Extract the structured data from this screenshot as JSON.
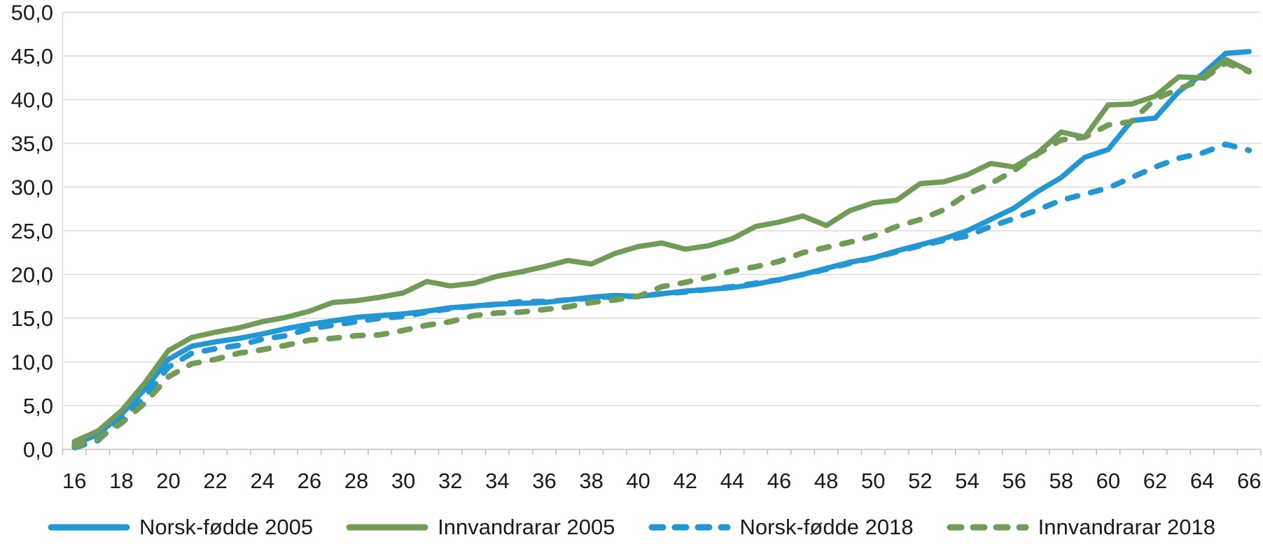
{
  "chart_data": {
    "type": "line",
    "title": "",
    "xlabel": "",
    "ylabel": "",
    "ylim": [
      0,
      50
    ],
    "grid": true,
    "legend_position": "bottom",
    "x_label_every": 2,
    "x": [
      16,
      17,
      18,
      19,
      20,
      21,
      22,
      23,
      24,
      25,
      26,
      27,
      28,
      29,
      30,
      31,
      32,
      33,
      34,
      35,
      36,
      37,
      38,
      39,
      40,
      41,
      42,
      43,
      44,
      45,
      46,
      47,
      48,
      49,
      50,
      51,
      52,
      53,
      54,
      55,
      56,
      57,
      58,
      59,
      60,
      61,
      62,
      63,
      64,
      65,
      66
    ],
    "y_ticks": [
      {
        "value": 0,
        "label": "0,0"
      },
      {
        "value": 5,
        "label": "5,0"
      },
      {
        "value": 10,
        "label": "10,0"
      },
      {
        "value": 15,
        "label": "15,0"
      },
      {
        "value": 20,
        "label": "20,0"
      },
      {
        "value": 25,
        "label": "25,0"
      },
      {
        "value": 30,
        "label": "30,0"
      },
      {
        "value": 35,
        "label": "35,0"
      },
      {
        "value": 40,
        "label": "40,0"
      },
      {
        "value": 45,
        "label": "45,0"
      },
      {
        "value": 50,
        "label": "50,0"
      }
    ],
    "series": [
      {
        "name": "Norsk-fødde 2005",
        "color": "#2297d4",
        "dashed": false,
        "values": [
          0.6,
          1.7,
          4.0,
          6.9,
          10.3,
          11.8,
          12.3,
          12.7,
          13.2,
          13.8,
          14.3,
          14.7,
          15.1,
          15.3,
          15.5,
          15.8,
          16.2,
          16.4,
          16.6,
          16.7,
          16.8,
          17.1,
          17.4,
          17.6,
          17.5,
          17.8,
          18.1,
          18.3,
          18.5,
          18.9,
          19.4,
          20.0,
          20.7,
          21.4,
          21.9,
          22.7,
          23.4,
          24.1,
          25.0,
          26.3,
          27.6,
          29.5,
          31.1,
          33.4,
          34.3,
          37.6,
          37.9,
          40.9,
          42.9,
          45.3,
          45.5
        ]
      },
      {
        "name": "Innvandrarar 2005",
        "color": "#709c58",
        "dashed": false,
        "values": [
          0.9,
          2.1,
          4.4,
          7.6,
          11.3,
          12.8,
          13.4,
          13.9,
          14.6,
          15.1,
          15.8,
          16.8,
          17.0,
          17.4,
          17.9,
          19.2,
          18.7,
          19.0,
          19.8,
          20.3,
          20.9,
          21.6,
          21.2,
          22.4,
          23.2,
          23.6,
          22.9,
          23.3,
          24.1,
          25.5,
          26.0,
          26.7,
          25.6,
          27.3,
          28.2,
          28.5,
          30.4,
          30.6,
          31.4,
          32.7,
          32.3,
          33.9,
          36.3,
          35.7,
          39.4,
          39.5,
          40.4,
          42.6,
          42.5,
          44.6,
          43.3
        ]
      },
      {
        "name": "Norsk-fødde 2018",
        "color": "#2297d4",
        "dashed": true,
        "values": [
          0.2,
          1.0,
          3.5,
          6.0,
          9.4,
          11.0,
          11.5,
          11.9,
          12.6,
          13.0,
          13.8,
          14.2,
          14.6,
          15.0,
          15.2,
          15.7,
          16.1,
          16.4,
          16.6,
          16.9,
          16.9,
          17.1,
          17.3,
          17.5,
          17.5,
          17.8,
          18.0,
          18.3,
          18.6,
          19.0,
          19.4,
          20.0,
          20.6,
          21.3,
          21.9,
          22.6,
          23.3,
          23.9,
          24.4,
          25.5,
          26.4,
          27.4,
          28.5,
          29.2,
          29.9,
          31.1,
          32.3,
          33.3,
          33.9,
          34.9,
          34.2
        ]
      },
      {
        "name": "Innvandrarar 2018",
        "color": "#709c58",
        "dashed": true,
        "values": [
          0.3,
          1.2,
          3.0,
          5.3,
          8.3,
          9.8,
          10.3,
          11.0,
          11.4,
          11.9,
          12.5,
          12.7,
          13.0,
          13.1,
          13.6,
          14.2,
          14.6,
          15.3,
          15.6,
          15.7,
          16.0,
          16.3,
          16.8,
          17.1,
          17.5,
          18.6,
          19.1,
          19.7,
          20.4,
          20.9,
          21.5,
          22.5,
          23.1,
          23.7,
          24.4,
          25.5,
          26.3,
          27.4,
          29.2,
          30.4,
          31.9,
          33.8,
          35.4,
          35.7,
          37.1,
          37.5,
          40.1,
          41.2,
          42.3,
          44.2,
          43.2
        ]
      }
    ],
    "colors": {
      "gridline": "#d9d9d9",
      "axis": "#bfbfbf",
      "text": "#1a1a1a",
      "background": "#ffffff"
    }
  }
}
